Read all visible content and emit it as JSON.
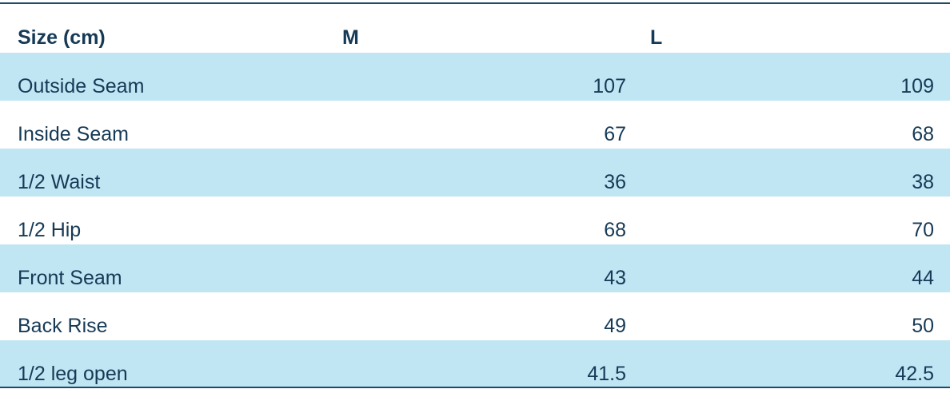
{
  "table": {
    "header": [
      "Size (cm)",
      "M",
      "L"
    ],
    "rows": [
      [
        "Outside Seam",
        107,
        109
      ],
      [
        "Inside Seam",
        67,
        68
      ],
      [
        "1/2 Waist",
        36,
        38
      ],
      [
        "1/2 Hip",
        68,
        70
      ],
      [
        "Front Seam",
        43,
        44
      ],
      [
        "Back Rise",
        49,
        50
      ],
      [
        "1/2 leg open",
        41.5,
        42.5
      ]
    ]
  }
}
